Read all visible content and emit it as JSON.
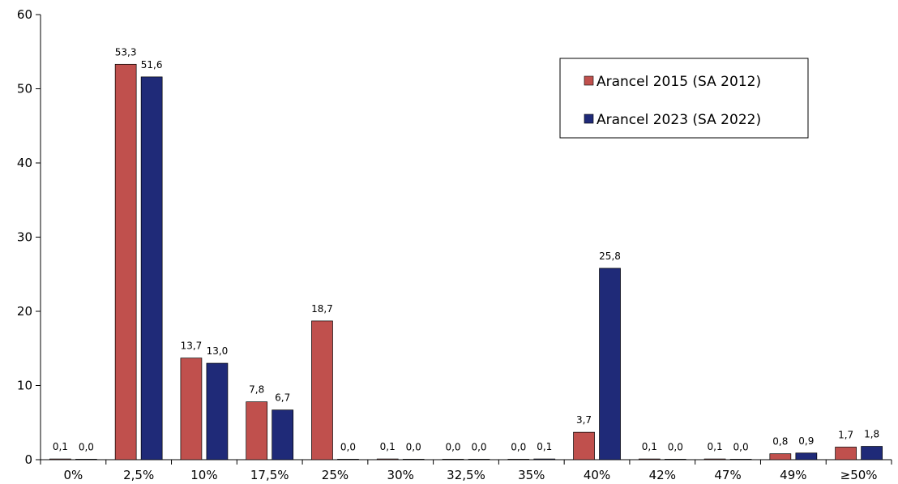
{
  "chart_data": {
    "type": "bar",
    "title": "",
    "xlabel": "",
    "ylabel": "",
    "ylim": [
      0,
      60
    ],
    "yticks": [
      0,
      10,
      20,
      30,
      40,
      50,
      60
    ],
    "grid": false,
    "legend_position": "top-right",
    "categories": [
      "0%",
      "2,5%",
      "10%",
      "17,5%",
      "25%",
      "30%",
      "32,5%",
      "35%",
      "40%",
      "42%",
      "47%",
      "49%",
      "≥50%"
    ],
    "series": [
      {
        "name": "Arancel 2015 (SA 2012)",
        "color": "#c0504d",
        "values": [
          0.1,
          53.3,
          13.7,
          7.8,
          18.7,
          0.1,
          0.0,
          0.0,
          3.7,
          0.1,
          0.1,
          0.8,
          1.7
        ],
        "labels": [
          "0,1",
          "53,3",
          "13,7",
          "7,8",
          "18,7",
          "0,1",
          "0,0",
          "0,0",
          "3,7",
          "0,1",
          "0,1",
          "0,8",
          "1,7"
        ]
      },
      {
        "name": "Arancel 2023 (SA 2022)",
        "color": "#1f2a78",
        "values": [
          0.0,
          51.6,
          13.0,
          6.7,
          0.0,
          0.0,
          0.0,
          0.1,
          25.8,
          0.0,
          0.0,
          0.9,
          1.8
        ],
        "labels": [
          "0,0",
          "51,6",
          "13,0",
          "6,7",
          "0,0",
          "0,0",
          "0,0",
          "0,1",
          "25,8",
          "0,0",
          "0,0",
          "0,9",
          "1,8"
        ]
      }
    ]
  }
}
